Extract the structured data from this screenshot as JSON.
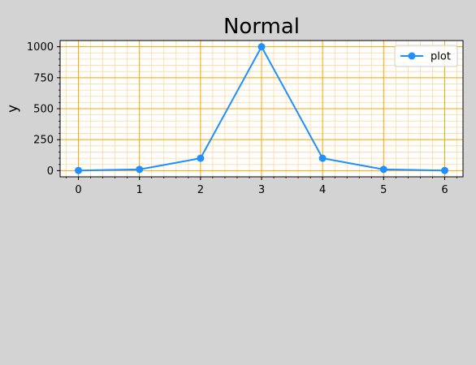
{
  "chart_data": {
    "type": "line",
    "title": "Normal",
    "xlabel": "",
    "ylabel": "y",
    "x": [
      0,
      1,
      2,
      3,
      4,
      5,
      6
    ],
    "series": [
      {
        "name": "plot",
        "values": [
          1,
          10,
          100,
          1000,
          100,
          10,
          1
        ],
        "color": "#1e90ff",
        "marker": "circle"
      }
    ],
    "xlim": [
      -0.3,
      6.3
    ],
    "ylim": [
      -49.95,
      1049.95
    ],
    "xticks": [
      0,
      1,
      2,
      3,
      4,
      5,
      6
    ],
    "xtick_labels": [
      "0",
      "1",
      "2",
      "3",
      "4",
      "5",
      "6"
    ],
    "yticks": [
      0,
      250,
      500,
      750,
      1000
    ],
    "ytick_labels": [
      "0",
      "250",
      "500",
      "750",
      "1000"
    ],
    "grid": {
      "major": true,
      "minor": true,
      "major_color": "#ffa500",
      "minor_color": "#ffd8a0"
    },
    "legend": {
      "position": "top-right",
      "entries": [
        "plot"
      ]
    },
    "background": "#d3d3d3",
    "plot_background": "#ffffff"
  }
}
